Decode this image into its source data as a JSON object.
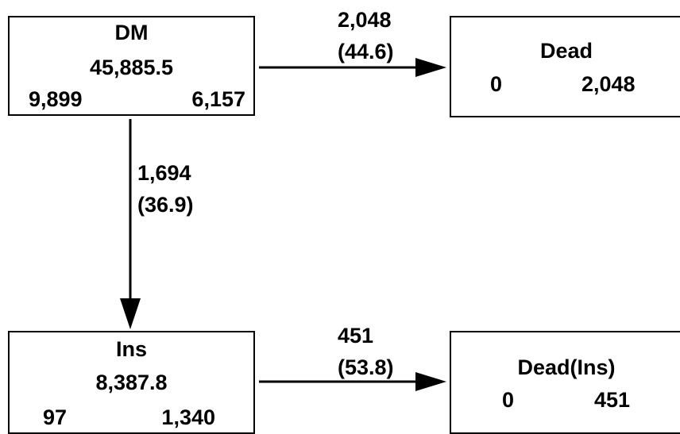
{
  "nodes": {
    "dm": {
      "title": "DM",
      "value": "45,885.5",
      "left_count": "9,899",
      "right_count": "6,157"
    },
    "dead": {
      "title": "Dead",
      "left_count": "0",
      "right_count": "2,048"
    },
    "ins": {
      "title": "Ins",
      "value": "8,387.8",
      "left_count": "97",
      "right_count": "1,340"
    },
    "dead_ins": {
      "title": "Dead(Ins)",
      "left_count": "0",
      "right_count": "451"
    }
  },
  "edges": {
    "dm_to_dead": {
      "count": "2,048",
      "rate": "(44.6)"
    },
    "dm_to_ins": {
      "count": "1,694",
      "rate": "(36.9)"
    },
    "ins_to_dead_ins": {
      "count": "451",
      "rate": "(53.8)"
    }
  },
  "colors": {
    "stroke": "#000000",
    "background": "#ffffff"
  }
}
